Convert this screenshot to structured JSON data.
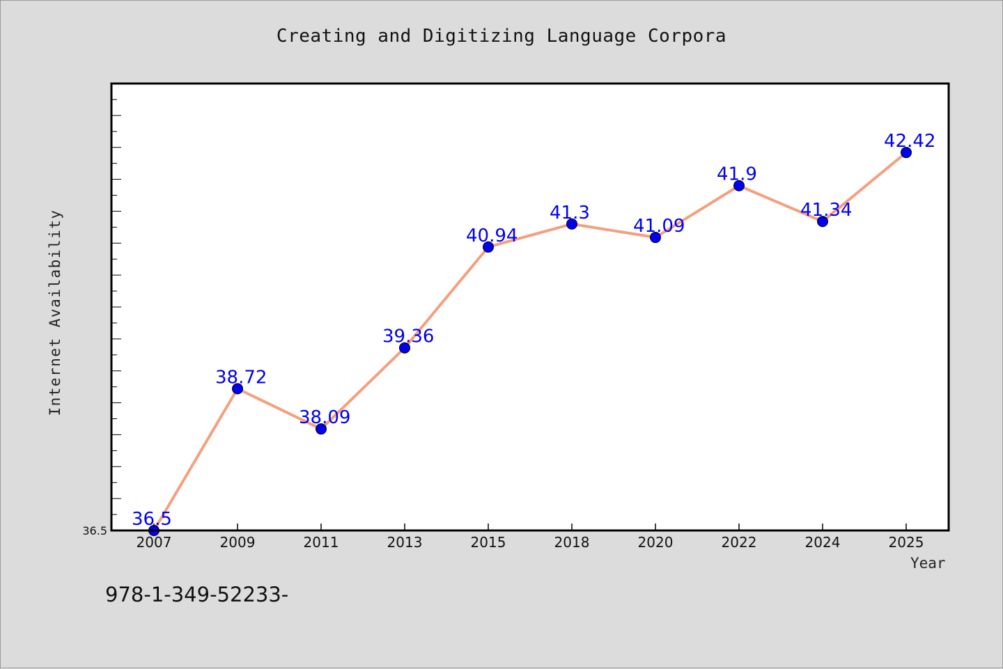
{
  "chart_data": {
    "type": "line",
    "title": "Creating and Digitizing Language Corpora",
    "xlabel": "Year",
    "ylabel": "Internet Availability",
    "categories": [
      "2007",
      "2009",
      "2011",
      "2013",
      "2015",
      "2018",
      "2020",
      "2022",
      "2024",
      "2025"
    ],
    "series": [
      {
        "values": [
          36.5,
          38.72,
          38.09,
          39.36,
          40.94,
          41.3,
          41.09,
          41.9,
          41.34,
          42.42
        ]
      }
    ],
    "data_labels": [
      "36.5",
      "38.72",
      "38.09",
      "39.36",
      "40.94",
      "41.3",
      "41.09",
      "41.9",
      "41.34",
      "42.42"
    ],
    "ylim": [
      36.5,
      43.5
    ],
    "y_ticks_labeled": [
      "36.5"
    ],
    "grid": false,
    "line_color": "#f4a07f",
    "marker_color": "#0000f0",
    "label_color": "#0000f0",
    "plot_background": "#ffffff",
    "figure_background": "#dcdcdc"
  },
  "footer": {
    "code": "978-1-349-52233-"
  }
}
